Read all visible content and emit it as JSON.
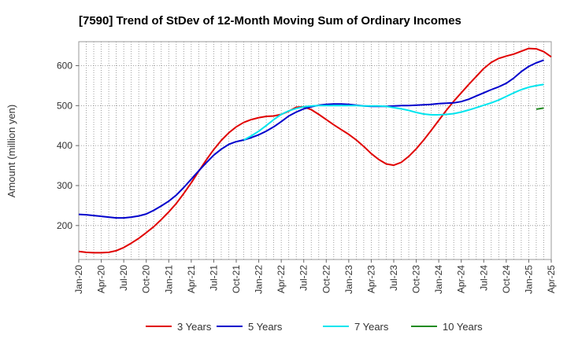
{
  "chart_data": {
    "type": "line",
    "title": "[7590]  Trend of StDev of 12-Month Moving Sum of Ordinary Incomes",
    "xlabel": "",
    "ylabel": "Amount (million yen)",
    "ylim": [
      115,
      660
    ],
    "yticks": [
      200,
      300,
      400,
      500,
      600
    ],
    "grid": true,
    "legend_position": "bottom",
    "x_index_origin": "Jan-20",
    "x_tick_labels": [
      "Jan-20",
      "Apr-20",
      "Jul-20",
      "Oct-20",
      "Jan-21",
      "Apr-21",
      "Jul-21",
      "Oct-21",
      "Jan-22",
      "Apr-22",
      "Jul-22",
      "Oct-22",
      "Jan-23",
      "Apr-23",
      "Jul-23",
      "Oct-23",
      "Jan-24",
      "Apr-24",
      "Jul-24",
      "Oct-24",
      "Jan-25",
      "Apr-25"
    ],
    "series": [
      {
        "name": "3 Years",
        "color": "#e00000",
        "points": [
          [
            0,
            135
          ],
          [
            1,
            133
          ],
          [
            2,
            132
          ],
          [
            3,
            132
          ],
          [
            4,
            133
          ],
          [
            5,
            137
          ],
          [
            6,
            145
          ],
          [
            7,
            156
          ],
          [
            8,
            168
          ],
          [
            9,
            182
          ],
          [
            10,
            197
          ],
          [
            11,
            215
          ],
          [
            12,
            234
          ],
          [
            13,
            255
          ],
          [
            14,
            280
          ],
          [
            15,
            307
          ],
          [
            16,
            336
          ],
          [
            17,
            364
          ],
          [
            18,
            390
          ],
          [
            19,
            413
          ],
          [
            20,
            432
          ],
          [
            21,
            447
          ],
          [
            22,
            458
          ],
          [
            23,
            465
          ],
          [
            24,
            470
          ],
          [
            25,
            473
          ],
          [
            26,
            474
          ],
          [
            27,
            478
          ],
          [
            28,
            486
          ],
          [
            29,
            496
          ],
          [
            30,
            497
          ],
          [
            31,
            490
          ],
          [
            32,
            478
          ],
          [
            33,
            465
          ],
          [
            34,
            452
          ],
          [
            35,
            440
          ],
          [
            36,
            428
          ],
          [
            37,
            414
          ],
          [
            38,
            398
          ],
          [
            39,
            380
          ],
          [
            40,
            365
          ],
          [
            41,
            354
          ],
          [
            42,
            351
          ],
          [
            43,
            358
          ],
          [
            44,
            373
          ],
          [
            45,
            392
          ],
          [
            46,
            414
          ],
          [
            47,
            438
          ],
          [
            48,
            463
          ],
          [
            49,
            488
          ],
          [
            50,
            511
          ],
          [
            51,
            532
          ],
          [
            52,
            553
          ],
          [
            53,
            573
          ],
          [
            54,
            593
          ],
          [
            55,
            608
          ],
          [
            56,
            618
          ],
          [
            57,
            624
          ],
          [
            58,
            629
          ],
          [
            59,
            636
          ],
          [
            60,
            643
          ],
          [
            61,
            642
          ],
          [
            62,
            635
          ],
          [
            63,
            622
          ]
        ]
      },
      {
        "name": "5 Years",
        "color": "#0000cc",
        "points": [
          [
            0,
            228
          ],
          [
            1,
            227
          ],
          [
            2,
            225
          ],
          [
            3,
            223
          ],
          [
            4,
            221
          ],
          [
            5,
            219
          ],
          [
            6,
            219
          ],
          [
            7,
            221
          ],
          [
            8,
            224
          ],
          [
            9,
            229
          ],
          [
            10,
            238
          ],
          [
            11,
            249
          ],
          [
            12,
            261
          ],
          [
            13,
            276
          ],
          [
            14,
            295
          ],
          [
            15,
            316
          ],
          [
            16,
            337
          ],
          [
            17,
            357
          ],
          [
            18,
            376
          ],
          [
            19,
            391
          ],
          [
            20,
            403
          ],
          [
            21,
            410
          ],
          [
            22,
            414
          ],
          [
            23,
            420
          ],
          [
            24,
            427
          ],
          [
            25,
            436
          ],
          [
            26,
            447
          ],
          [
            27,
            460
          ],
          [
            28,
            474
          ],
          [
            29,
            484
          ],
          [
            30,
            492
          ],
          [
            31,
            497
          ],
          [
            32,
            501
          ],
          [
            33,
            503
          ],
          [
            34,
            504
          ],
          [
            35,
            504
          ],
          [
            36,
            503
          ],
          [
            37,
            501
          ],
          [
            38,
            499
          ],
          [
            39,
            498
          ],
          [
            40,
            498
          ],
          [
            41,
            498
          ],
          [
            42,
            499
          ],
          [
            43,
            500
          ],
          [
            44,
            500
          ],
          [
            45,
            501
          ],
          [
            46,
            502
          ],
          [
            47,
            503
          ],
          [
            48,
            505
          ],
          [
            49,
            506
          ],
          [
            50,
            507
          ],
          [
            51,
            510
          ],
          [
            52,
            516
          ],
          [
            53,
            524
          ],
          [
            54,
            532
          ],
          [
            55,
            540
          ],
          [
            56,
            547
          ],
          [
            57,
            556
          ],
          [
            58,
            569
          ],
          [
            59,
            585
          ],
          [
            60,
            598
          ],
          [
            61,
            607
          ],
          [
            62,
            614
          ]
        ]
      },
      {
        "name": "7 Years",
        "color": "#00e5ee",
        "points": [
          [
            22,
            414
          ],
          [
            23,
            424
          ],
          [
            24,
            436
          ],
          [
            25,
            450
          ],
          [
            26,
            465
          ],
          [
            27,
            478
          ],
          [
            28,
            487
          ],
          [
            29,
            493
          ],
          [
            30,
            497
          ],
          [
            31,
            499
          ],
          [
            32,
            500
          ],
          [
            33,
            500
          ],
          [
            34,
            500
          ],
          [
            35,
            500
          ],
          [
            36,
            500
          ],
          [
            37,
            500
          ],
          [
            38,
            499
          ],
          [
            39,
            499
          ],
          [
            40,
            499
          ],
          [
            41,
            498
          ],
          [
            42,
            495
          ],
          [
            43,
            492
          ],
          [
            44,
            488
          ],
          [
            45,
            483
          ],
          [
            46,
            479
          ],
          [
            47,
            477
          ],
          [
            48,
            477
          ],
          [
            49,
            478
          ],
          [
            50,
            480
          ],
          [
            51,
            484
          ],
          [
            52,
            489
          ],
          [
            53,
            495
          ],
          [
            54,
            501
          ],
          [
            55,
            507
          ],
          [
            56,
            514
          ],
          [
            57,
            523
          ],
          [
            58,
            532
          ],
          [
            59,
            540
          ],
          [
            60,
            546
          ],
          [
            61,
            550
          ],
          [
            62,
            553
          ]
        ]
      },
      {
        "name": "10 Years",
        "color": "#228b22",
        "points": [
          [
            61,
            491
          ],
          [
            62,
            494
          ]
        ]
      }
    ]
  }
}
